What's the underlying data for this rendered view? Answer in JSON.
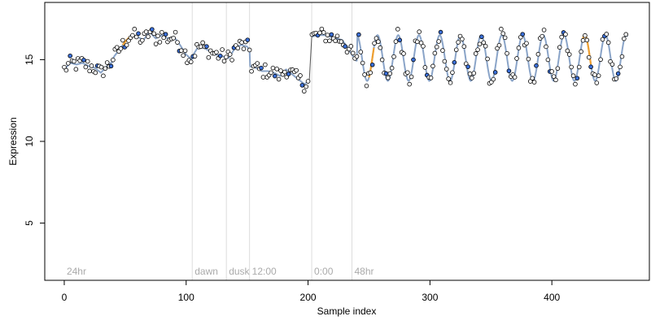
{
  "chart_data": {
    "type": "scatter",
    "xlabel": "Sample index",
    "ylabel": "Expression",
    "xlim": [
      -16,
      480
    ],
    "ylim": [
      1.5,
      18.5
    ],
    "x_ticks": [
      0,
      100,
      200,
      300,
      400
    ],
    "y_ticks": [
      5,
      10,
      15
    ],
    "x_tick_labels": [
      "0",
      "100",
      "200",
      "300",
      "400"
    ],
    "y_tick_labels": [
      "5",
      "10",
      "15"
    ],
    "grid": false,
    "legend": "none",
    "phase_markers": [
      {
        "x": 0,
        "label": "24hr"
      },
      {
        "x": 105,
        "label": "dawn"
      },
      {
        "x": 133,
        "label": "dusk"
      },
      {
        "x": 152,
        "label": "12:00"
      },
      {
        "x": 203,
        "label": "0:00"
      },
      {
        "x": 236,
        "label": "48hr"
      }
    ],
    "colors": {
      "fit_line": "#8aa4c8",
      "highlight_segment": "#f0a030",
      "point_stroke": "#000000",
      "point_fill": "#ffffff",
      "point_fill_alt": "#3a6fd8",
      "phase_line": "#dddddd",
      "phase_text": "#aaaaaa"
    },
    "segments": [
      {
        "x0": 0,
        "x1": 40,
        "knots": [
          [
            0,
            14.4
          ],
          [
            5,
            14.8
          ],
          [
            10,
            14.7
          ],
          [
            15,
            14.8
          ],
          [
            20,
            14.6
          ],
          [
            25,
            14.5
          ],
          [
            30,
            14.2
          ],
          [
            35,
            14.6
          ],
          [
            40,
            14.9
          ]
        ]
      },
      {
        "x0": 40,
        "x1": 105,
        "knots": [
          [
            40,
            15.1
          ],
          [
            45,
            15.6
          ],
          [
            50,
            16.1
          ],
          [
            55,
            16.5
          ],
          [
            60,
            16.4
          ],
          [
            65,
            16.2
          ],
          [
            70,
            16.7
          ],
          [
            75,
            16.3
          ],
          [
            80,
            16.5
          ],
          [
            85,
            16.3
          ],
          [
            90,
            16.4
          ],
          [
            95,
            15.9
          ],
          [
            100,
            15.3
          ],
          [
            105,
            15.0
          ]
        ]
      },
      {
        "x0": 105,
        "x1": 152,
        "knots": [
          [
            105,
            15.2
          ],
          [
            110,
            15.8
          ],
          [
            115,
            15.7
          ],
          [
            120,
            15.5
          ],
          [
            125,
            15.3
          ],
          [
            130,
            15.2
          ],
          [
            135,
            15.1
          ],
          [
            140,
            15.7
          ],
          [
            145,
            15.9
          ],
          [
            150,
            15.8
          ],
          [
            152,
            15.6
          ]
        ]
      },
      {
        "x0": 152,
        "x1": 201,
        "knots": [
          [
            152,
            14.6
          ],
          [
            157,
            14.5
          ],
          [
            162,
            14.3
          ],
          [
            167,
            14.3
          ],
          [
            172,
            14.2
          ],
          [
            177,
            14.0
          ],
          [
            182,
            14.4
          ],
          [
            187,
            14.1
          ],
          [
            192,
            13.8
          ],
          [
            197,
            13.5
          ],
          [
            201,
            13.7
          ]
        ]
      },
      {
        "x0": 203,
        "x1": 240,
        "knots": [
          [
            203,
            16.4
          ],
          [
            208,
            16.5
          ],
          [
            213,
            16.5
          ],
          [
            218,
            16.4
          ],
          [
            223,
            16.3
          ],
          [
            228,
            16.2
          ],
          [
            232,
            15.8
          ],
          [
            236,
            15.3
          ],
          [
            240,
            14.9
          ]
        ]
      }
    ],
    "oscillation": {
      "x0": 240,
      "x1": 462,
      "period": 17,
      "phase_x": 240,
      "mid": 15.1,
      "amp": 1.4
    },
    "highlights": [
      [
        48,
        54
      ],
      [
        178,
        181
      ],
      [
        250,
        254
      ],
      [
        425,
        432
      ]
    ],
    "gap_lines": [
      [
        201,
        203
      ]
    ],
    "fill_alt_every": 7
  }
}
